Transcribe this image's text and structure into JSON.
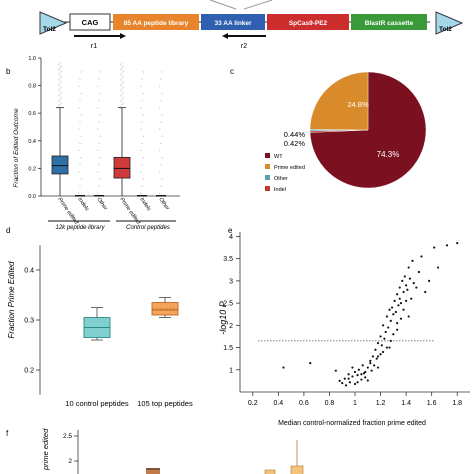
{
  "construct": {
    "tol2_left": "Tol2",
    "tol2_right": "Tol2",
    "segments": [
      "CAG",
      "85 AA peptide library",
      "33 AA linker",
      "SpCas9-PE2",
      "BlastR cassette"
    ],
    "primer_1": "r1",
    "primer_2": "r2"
  },
  "panel_b": {
    "letter": "b",
    "ylabel": "Fraction of Edited Outcome",
    "yticks": [
      "0.0",
      "0.2",
      "0.4",
      "0.6",
      "0.8",
      "1.0"
    ],
    "xticks": [
      "Prime edited",
      "Indels",
      "Other",
      "Prime edited",
      "Indels",
      "Other"
    ],
    "group_left": "12k peptide library",
    "group_right": "Control peptides"
  },
  "panel_c": {
    "letter": "c",
    "slices": [
      "24.8%",
      "74.3%",
      "0.44%",
      "0.42%"
    ],
    "legend": [
      "WT",
      "Prime edited",
      "Other",
      "Indel"
    ]
  },
  "panel_d": {
    "letter": "d",
    "ylabel": "Fraction Prime Edited",
    "yticks": [
      "0.2",
      "0.3",
      "0.4"
    ],
    "xticks": [
      "10 control peptides",
      "105 top peptides"
    ]
  },
  "panel_e": {
    "letter": "e",
    "ylabel": "-log10 P",
    "xlabel": "Median control-normalized fraction prime edited",
    "yticks": [
      "1",
      "1.5",
      "2",
      "2.5",
      "3",
      "3.5",
      "4"
    ],
    "xticks": [
      "0.2",
      "0.4",
      "0.6",
      "0.8",
      "1",
      "1.2",
      "1.4",
      "1.6",
      "1.8"
    ]
  },
  "panel_f": {
    "letter": "f",
    "ylabel": "prime edited",
    "yticks": [
      "1.5",
      "2",
      "2.5"
    ]
  },
  "colors": {
    "wt": "#7a1020",
    "prime_edited": "#d98a2a",
    "other": "#5aa0b4",
    "indel": "#c0392b",
    "box_blue": "#2f6fa8",
    "box_red": "#cf3b3b",
    "box_teal": "#7fd0cf",
    "box_orange": "#f5a45c"
  },
  "chart_data": [
    {
      "type": "box",
      "panel": "b",
      "categories": [
        "Prime edited",
        "Indels",
        "Other",
        "Prime edited",
        "Indels",
        "Other"
      ],
      "groups": [
        "12k peptide library",
        "Control peptides"
      ],
      "boxes": [
        {
          "q1": 0.16,
          "median": 0.22,
          "q3": 0.29,
          "whisker_low": 0.0,
          "whisker_high": 0.64
        },
        {
          "q1": 0.0,
          "median": 0.0,
          "q3": 0.0,
          "whisker_low": 0.0,
          "whisker_high": 0.0
        },
        {
          "q1": 0.0,
          "median": 0.0,
          "q3": 0.0,
          "whisker_low": 0.0,
          "whisker_high": 0.0
        },
        {
          "q1": 0.13,
          "median": 0.2,
          "q3": 0.28,
          "whisker_low": 0.0,
          "whisker_high": 0.64
        },
        {
          "q1": 0.0,
          "median": 0.0,
          "q3": 0.0,
          "whisker_low": 0.0,
          "whisker_high": 0.0
        },
        {
          "q1": 0.0,
          "median": 0.0,
          "q3": 0.0,
          "whisker_low": 0.0,
          "whisker_high": 0.0
        }
      ],
      "ylim": [
        0,
        1.0
      ]
    },
    {
      "type": "pie",
      "panel": "c",
      "labels": [
        "WT",
        "Prime edited",
        "Other",
        "Indel"
      ],
      "values": [
        74.3,
        24.8,
        0.44,
        0.42
      ]
    },
    {
      "type": "box",
      "panel": "d",
      "categories": [
        "10 control peptides",
        "105 top peptides"
      ],
      "boxes": [
        {
          "q1": 0.265,
          "median": 0.285,
          "q3": 0.305,
          "mean": 0.285,
          "whisker_low": 0.26,
          "whisker_high": 0.325
        },
        {
          "q1": 0.31,
          "median": 0.32,
          "q3": 0.335,
          "mean": 0.322,
          "whisker_low": 0.305,
          "whisker_high": 0.345
        }
      ],
      "ylim": [
        0.15,
        0.45
      ]
    },
    {
      "type": "scatter",
      "panel": "e",
      "xlim": [
        0.2,
        1.8
      ],
      "ylim": [
        0.5,
        4.0
      ],
      "threshold_y": 1.65,
      "x": [
        0.44,
        0.65,
        0.85,
        0.88,
        0.9,
        0.92,
        0.93,
        0.95,
        0.96,
        0.98,
        1.0,
        1.0,
        1.02,
        1.03,
        1.05,
        1.06,
        1.07,
        1.08,
        1.1,
        1.1,
        1.12,
        1.13,
        1.14,
        1.15,
        1.16,
        1.17,
        1.18,
        1.18,
        1.2,
        1.2,
        1.21,
        1.22,
        1.23,
        1.24,
        1.25,
        1.25,
        1.26,
        1.27,
        1.28,
        1.28,
        1.29,
        1.3,
        1.3,
        1.31,
        1.32,
        1.33,
        1.33,
        1.34,
        1.35,
        1.35,
        1.36,
        1.37,
        1.38,
        1.38,
        1.39,
        1.4,
        1.4,
        1.41,
        1.42,
        1.43,
        1.44,
        1.45,
        1.46,
        1.48,
        1.5,
        1.52,
        1.55,
        1.58,
        1.62,
        1.65,
        1.72,
        1.8,
        0.98,
        1.05,
        1.12,
        1.18,
        1.22,
        1.27,
        1.33,
        1.36,
        1.42,
        0.95,
        1.02,
        1.08
      ],
      "y": [
        1.05,
        1.15,
        0.98,
        0.75,
        0.7,
        0.8,
        0.65,
        0.9,
        0.72,
        0.85,
        0.95,
        0.68,
        0.88,
        1.0,
        0.78,
        1.1,
        0.92,
        0.83,
        1.05,
        0.76,
        1.2,
        0.98,
        1.3,
        1.1,
        1.45,
        1.25,
        1.6,
        1.05,
        1.75,
        1.35,
        1.55,
        2.0,
        1.7,
        1.85,
        2.2,
        1.5,
        1.95,
        2.35,
        2.1,
        1.65,
        2.4,
        2.25,
        1.8,
        2.55,
        2.3,
        2.7,
        2.05,
        2.45,
        2.85,
        2.6,
        2.5,
        3.0,
        2.75,
        2.35,
        3.1,
        2.9,
        2.55,
        2.8,
        3.3,
        3.05,
        2.6,
        3.45,
        2.95,
        2.85,
        3.2,
        3.55,
        2.75,
        3.0,
        3.75,
        3.3,
        3.8,
        3.85,
        1.05,
        0.9,
        1.15,
        1.3,
        1.4,
        1.5,
        1.9,
        2.15,
        2.2,
        0.8,
        0.72,
        0.95
      ]
    }
  ]
}
